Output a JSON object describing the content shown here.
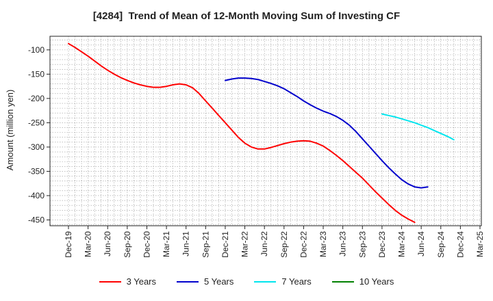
{
  "chart_data": {
    "type": "line",
    "title": "[4284]  Trend of Mean of 12-Month Moving Sum of Investing CF",
    "xlabel": "",
    "ylabel": "Amount (million yen)",
    "ylim": [
      -462,
      -72
    ],
    "yticks": [
      -100,
      -150,
      -200,
      -250,
      -300,
      -350,
      -400,
      -450
    ],
    "x_tick_labels": [
      "Dec-19",
      "Mar-20",
      "Jun-20",
      "Sep-20",
      "Dec-20",
      "Mar-21",
      "Jun-21",
      "Sep-21",
      "Dec-21",
      "Mar-22",
      "Jun-22",
      "Sep-22",
      "Dec-22",
      "Mar-23",
      "Jun-23",
      "Sep-23",
      "Dec-23",
      "Mar-24",
      "Jun-24",
      "Sep-24",
      "Dec-24",
      "Mar-25"
    ],
    "grid": true,
    "legend_position": "bottom",
    "series": [
      {
        "name": "3 Years",
        "color": "#ff0000",
        "start_index": 0,
        "values": [
          -87,
          -95,
          -104,
          -113,
          -123,
          -133,
          -142,
          -150,
          -157,
          -163,
          -168,
          -172,
          -175,
          -177,
          -177,
          -175,
          -172,
          -170,
          -172,
          -178,
          -190,
          -205,
          -220,
          -235,
          -250,
          -265,
          -280,
          -292,
          -300,
          -304,
          -304,
          -301,
          -297,
          -293,
          -290,
          -288,
          -287,
          -288,
          -292,
          -298,
          -307,
          -317,
          -328,
          -340,
          -352,
          -364,
          -378,
          -392,
          -405,
          -418,
          -430,
          -440,
          -448,
          -455
        ]
      },
      {
        "name": "5 Years",
        "color": "#0000cc",
        "start_index": 24,
        "values": [
          -163,
          -160,
          -158,
          -158,
          -159,
          -161,
          -165,
          -169,
          -174,
          -180,
          -188,
          -196,
          -205,
          -213,
          -220,
          -226,
          -231,
          -237,
          -245,
          -255,
          -268,
          -283,
          -298,
          -313,
          -328,
          -342,
          -355,
          -367,
          -376,
          -382,
          -384,
          -382
        ]
      },
      {
        "name": "7 Years",
        "color": "#00e5ee",
        "start_index": 48,
        "values": [
          -232,
          -235,
          -238,
          -242,
          -246,
          -250,
          -255,
          -260,
          -266,
          -272,
          -278,
          -285
        ]
      },
      {
        "name": "10 Years",
        "color": "#008000",
        "start_index": 0,
        "values": []
      }
    ]
  }
}
